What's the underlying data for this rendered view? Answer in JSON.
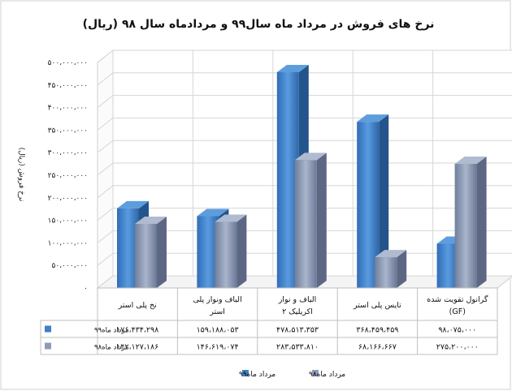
{
  "chart_data": {
    "type": "bar",
    "title": "نرخ های فروش در مرداد ماه سال۹۹ و مردادماه سال ۹۸ (ریال)",
    "ylabel": "نرخ فروش (ریال)",
    "ylim": [
      0,
      500000000
    ],
    "yticks": [
      0,
      50000000,
      100000000,
      150000000,
      200000000,
      250000000,
      300000000,
      350000000,
      400000000,
      450000000,
      500000000
    ],
    "ytick_labels": [
      "۰",
      "۵۰،۰۰۰،۰۰۰",
      "۱۰۰،۰۰۰،۰۰۰",
      "۱۵۰،۰۰۰،۰۰۰",
      "۲۰۰،۰۰۰،۰۰۰",
      "۲۵۰،۰۰۰،۰۰۰",
      "۳۰۰،۰۰۰،۰۰۰",
      "۳۵۰،۰۰۰،۰۰۰",
      "۴۰۰،۰۰۰،۰۰۰",
      "۴۵۰،۰۰۰،۰۰۰",
      "۵۰۰،۰۰۰،۰۰۰"
    ],
    "categories": [
      [
        "نخ پلی استر"
      ],
      [
        "الیاف ونوار پلی",
        "استر"
      ],
      [
        "الیاف و نوار",
        "اکریلیک ۲"
      ],
      [
        "تایس پلی استر"
      ],
      [
        "گرانول تقویت شده",
        "(GF)"
      ]
    ],
    "series": [
      {
        "name": "مرداد ماه۹۹",
        "color": "#3f80c8",
        "values": [
          176434298,
          159188053,
          478513353,
          368459459,
          98075000
        ],
        "value_labels": [
          "۱۷۶،۴۳۴،۲۹۸",
          "۱۵۹،۱۸۸،۰۵۳",
          "۴۷۸،۵۱۳،۳۵۳",
          "۳۶۸،۴۵۹،۴۵۹",
          "۹۸،۰۷۵،۰۰۰"
        ]
      },
      {
        "name": "مرداد ماه۹۸",
        "color": "#8d9bb8",
        "values": [
          142127186,
          146619074,
          283533810,
          68166667,
          275200000
        ],
        "value_labels": [
          "۱۴۲،۱۲۷،۱۸۶",
          "۱۴۶،۶۱۹،۰۷۴",
          "۲۸۳،۵۳۳،۸۱۰",
          "۶۸،۱۶۶،۶۶۷",
          "۲۷۵،۲۰۰،۰۰۰"
        ]
      }
    ],
    "grid": true,
    "legend": "bottom",
    "data_table": true
  }
}
